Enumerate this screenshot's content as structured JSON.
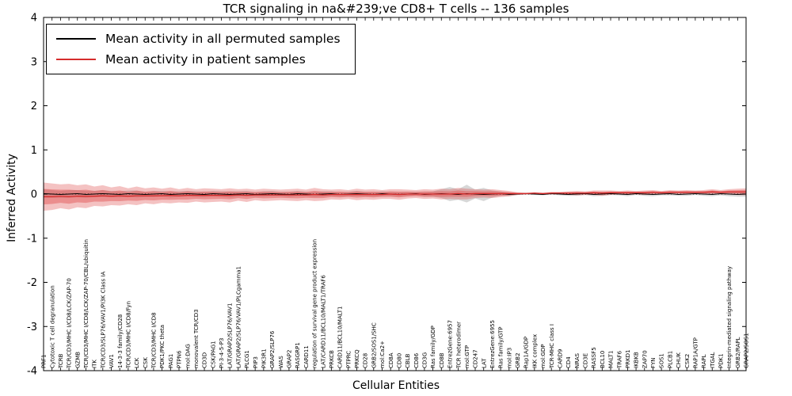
{
  "chart_data": {
    "type": "line",
    "title": "TCR signaling in na&#239;ve CD8+ T cells -- 136 samples",
    "xlabel": "Cellular Entities",
    "ylabel": "Inferred Activity",
    "ylim": [
      -4,
      4
    ],
    "yticks": [
      -4,
      -3,
      -2,
      -1,
      0,
      1,
      2,
      3,
      4
    ],
    "grid": false,
    "legend_position": "upper left",
    "zero_line_style": "dotted",
    "colors": {
      "permuted_line": "#000000",
      "patient_line": "#d62c2c",
      "patient_band": "#e05050",
      "permuted_band": "#b0b0b0",
      "frame": "#000000",
      "background": "#ffffff"
    },
    "categories": [
      "PRF1",
      "Cytotoxic T cell degranulation",
      "TCRB",
      "TCR/CD3/MHC I/CD8/LCK/ZAP-70",
      "GZMB",
      "TCR/CD3/MHC I/CD8/LCK/ZAP-70/CBL/ubiquitin",
      "ITK",
      "TCR/CD3/SLP76/VAV1/PI3K Class IA",
      "VAV1",
      "14-3-3 family/CD28",
      "TCR/CD3/MHC I/CD8/Fyn",
      "LCK",
      "CSK",
      "TCR/CD3/MHC I/CD8",
      "PDK1/PKC theta",
      "PAG1",
      "PTPN6",
      "mol:DAG",
      "monovalent TCR/CD3",
      "CD3D",
      "CSK/PAG1",
      "PI-3-4-5-P3",
      "LAT/GRAP2/SLP76/VAV1",
      "LAT/GRAP2/SLP76/VAV1/PLCgamma1",
      "PLCG1",
      "PIP3",
      "PIK3R1",
      "GRAP2/SLP76",
      "WAS",
      "GRAP2",
      "RASGRP1",
      "CARD11",
      "regulation of survival gene product expression",
      "LAT/CARD11/BCL10/MALT1/TRAF6",
      "PRKCB",
      "CARD11/BCL10/MALT1",
      "PTPRC",
      "PRKCQ",
      "CD28",
      "GRB2/SOS1/SHC",
      "mol:Ca2+",
      "CD8A",
      "CD80",
      "CBLB",
      "CD86",
      "CD3G",
      "Ras family/GDP",
      "CD8B",
      "EntrezGene:6957",
      "TCR heterodimer",
      "mol:GTP",
      "CD247",
      "LAT",
      "EntrezGene:6955",
      "Ras family/GTP",
      "mol:IP3",
      "GRB2",
      "Rap1A/GDP",
      "IKK complex",
      "mol:GDP",
      "TCR-MHC class I",
      "CARD9",
      "CD4",
      "NRAS",
      "CD3E",
      "RASSF5",
      "BCL10",
      "MALT1",
      "TRAF6",
      "PRKD1",
      "IKBKB",
      "ZAP70",
      "FYN",
      "SOS1",
      "PLCB1",
      "CHUK",
      "CSK2",
      "RAP1A/GTP",
      "RAPL",
      "ITGAL",
      "PDK1",
      "Integrin-mediated signaling pathway",
      "GRB2/RAPL",
      "GRAP2/SOS1"
    ],
    "series": [
      {
        "name": "Mean activity in all permuted samples",
        "color": "#000000",
        "band_color": "#b0b0b0",
        "values": [
          0.01,
          0,
          -0.01,
          0,
          0.01,
          -0.01,
          0,
          0.01,
          0,
          -0.01,
          0.01,
          0,
          -0.01,
          0,
          0.01,
          -0.01,
          0,
          0.01,
          0,
          -0.01,
          0.01,
          0,
          -0.01,
          0,
          0.01,
          -0.01,
          0,
          0.01,
          0,
          -0.01,
          0.01,
          0,
          -0.01,
          0,
          0.01,
          -0.01,
          0,
          0.01,
          0,
          -0.01,
          0.01,
          0,
          -0.01,
          0,
          0.01,
          -0.01,
          0,
          0.01,
          0,
          -0.01,
          0.01,
          0,
          -0.01,
          0,
          0.01,
          -0.01,
          0,
          0.01,
          0,
          -0.01,
          0.01,
          0,
          -0.01,
          0,
          0.01,
          -0.01,
          0,
          0.01,
          0,
          -0.01,
          0.01,
          0,
          -0.01,
          0,
          0.01,
          -0.01,
          0,
          0.01,
          0,
          -0.01,
          0.01,
          0,
          -0.01,
          0
        ],
        "band_half_width": [
          0.1,
          0.09,
          0.08,
          0.09,
          0.08,
          0.08,
          0.07,
          0.08,
          0.07,
          0.07,
          0.07,
          0.08,
          0.06,
          0.07,
          0.06,
          0.07,
          0.06,
          0.06,
          0.06,
          0.06,
          0.06,
          0.06,
          0.07,
          0.06,
          0.06,
          0.05,
          0.06,
          0.06,
          0.05,
          0.06,
          0.06,
          0.05,
          0.06,
          0.06,
          0.05,
          0.05,
          0.05,
          0.06,
          0.05,
          0.05,
          0.05,
          0.05,
          0.05,
          0.05,
          0.04,
          0.05,
          0.06,
          0.1,
          0.16,
          0.12,
          0.2,
          0.1,
          0.15,
          0.08,
          0.05,
          0.04,
          0.02,
          0.02,
          0.02,
          0.02,
          0.02,
          0.03,
          0.03,
          0.04,
          0.03,
          0.04,
          0.04,
          0.03,
          0.03,
          0.04,
          0.03,
          0.04,
          0.04,
          0.03,
          0.04,
          0.03,
          0.04,
          0.03,
          0.04,
          0.04,
          0.04,
          0.05,
          0.05,
          0.06
        ]
      },
      {
        "name": "Mean activity in patient samples",
        "color": "#d62c2c",
        "band_color": "#e05050",
        "values": [
          -0.06,
          -0.06,
          -0.05,
          -0.06,
          -0.05,
          -0.05,
          -0.05,
          -0.04,
          -0.05,
          -0.04,
          -0.05,
          -0.04,
          -0.04,
          -0.04,
          -0.04,
          -0.03,
          -0.04,
          -0.03,
          -0.03,
          -0.03,
          -0.03,
          -0.03,
          -0.03,
          -0.02,
          -0.03,
          -0.02,
          -0.02,
          -0.02,
          -0.02,
          -0.02,
          -0.02,
          -0.02,
          -0.01,
          -0.02,
          -0.01,
          -0.01,
          -0.01,
          -0.01,
          -0.01,
          -0.01,
          -0.01,
          0,
          -0.01,
          0,
          0,
          0,
          0,
          0,
          0,
          0.01,
          0,
          0.01,
          0.01,
          0.01,
          0.01,
          0.01,
          0.01,
          0.01,
          0.02,
          0.01,
          0.02,
          0.02,
          0.02,
          0.02,
          0.02,
          0.03,
          0.02,
          0.03,
          0.03,
          0.03,
          0.03,
          0.03,
          0.04,
          0.03,
          0.04,
          0.04,
          0.04,
          0.04,
          0.04,
          0.05,
          0.04,
          0.05,
          0.05,
          0.05
        ],
        "band_half_width": [
          0.32,
          0.3,
          0.27,
          0.29,
          0.25,
          0.27,
          0.22,
          0.24,
          0.2,
          0.22,
          0.18,
          0.21,
          0.17,
          0.19,
          0.16,
          0.18,
          0.15,
          0.17,
          0.14,
          0.16,
          0.15,
          0.14,
          0.16,
          0.13,
          0.15,
          0.12,
          0.14,
          0.13,
          0.12,
          0.13,
          0.14,
          0.12,
          0.15,
          0.13,
          0.11,
          0.12,
          0.1,
          0.13,
          0.11,
          0.12,
          0.1,
          0.11,
          0.12,
          0.1,
          0.09,
          0.11,
          0.1,
          0.12,
          0.11,
          0.13,
          0.12,
          0.1,
          0.09,
          0.1,
          0.08,
          0.06,
          0.03,
          0.02,
          0.02,
          0.02,
          0.03,
          0.03,
          0.04,
          0.05,
          0.04,
          0.05,
          0.06,
          0.05,
          0.04,
          0.05,
          0.04,
          0.05,
          0.05,
          0.04,
          0.05,
          0.04,
          0.05,
          0.04,
          0.05,
          0.06,
          0.05,
          0.06,
          0.07,
          0.08
        ]
      }
    ]
  }
}
